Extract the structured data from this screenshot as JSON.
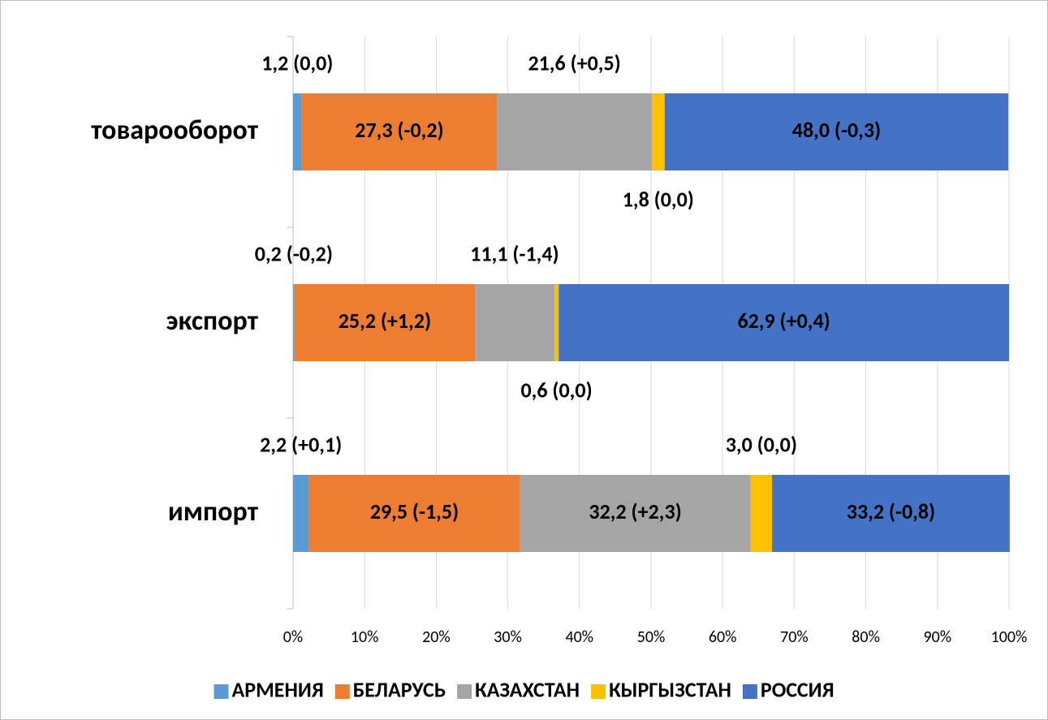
{
  "chart_data": {
    "type": "stacked_barh",
    "categories": [
      "товарооборот",
      "экспорт",
      "импорт"
    ],
    "series": [
      {
        "name": "АРМЕНИЯ",
        "color": "#5b9bd5",
        "values": [
          1.2,
          0.2,
          2.2
        ],
        "value_labels": [
          "1,2 (0,0)",
          "0,2 (-0,2)",
          "2,2 (+0,1)"
        ]
      },
      {
        "name": "БЕЛАРУСЬ",
        "color": "#ed7d31",
        "values": [
          27.3,
          25.2,
          29.5
        ],
        "value_labels": [
          "27,3 (-0,2)",
          "25,2 (+1,2)",
          "29,5 (-1,5)"
        ]
      },
      {
        "name": "КАЗАХСТАН",
        "color": "#a5a5a5",
        "values": [
          21.6,
          11.1,
          32.2
        ],
        "value_labels": [
          "21,6 (+0,5)",
          "11,1 (-1,4)",
          "32,2 (+2,3)"
        ]
      },
      {
        "name": "КЫРГЫЗСТАН",
        "color": "#ffc000",
        "values": [
          1.8,
          0.6,
          3.0
        ],
        "value_labels": [
          "1,8 (0,0)",
          "0,6 (0,0)",
          "3,0 (0,0)"
        ]
      },
      {
        "name": "РОССИЯ",
        "color": "#4472c4",
        "values": [
          48.0,
          62.9,
          33.2
        ],
        "value_labels": [
          "48,0 (-0,3)",
          "62,9 (+0,4)",
          "33,2 (-0,8)"
        ]
      }
    ],
    "xlim": [
      0,
      100
    ],
    "xticks": [
      {
        "value": 0,
        "label": "0%"
      },
      {
        "value": 10,
        "label": "10%"
      },
      {
        "value": 20,
        "label": "20%"
      },
      {
        "value": 30,
        "label": "30%"
      },
      {
        "value": 40,
        "label": "40%"
      },
      {
        "value": 50,
        "label": "50%"
      },
      {
        "value": 60,
        "label": "60%"
      },
      {
        "value": 70,
        "label": "70%"
      },
      {
        "value": 80,
        "label": "80%"
      },
      {
        "value": 90,
        "label": "90%"
      },
      {
        "value": 100,
        "label": "100%"
      }
    ],
    "grid": true,
    "legend": "bottom"
  }
}
